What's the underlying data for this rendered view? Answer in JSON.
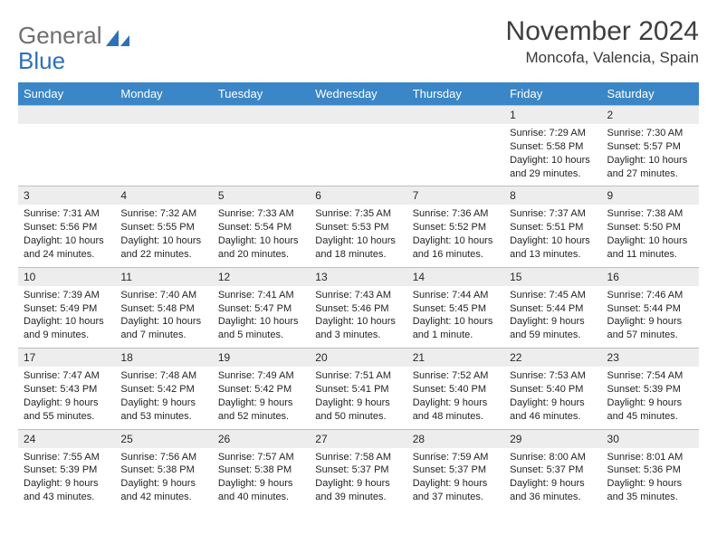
{
  "logo": {
    "text1": "General",
    "text2": "Blue"
  },
  "title": "November 2024",
  "location": "Moncofa, Valencia, Spain",
  "colors": {
    "header_bg": "#3b86c6",
    "header_text": "#ffffff",
    "daynum_bg": "#ededed",
    "border": "#bfbfbf",
    "logo_gray": "#6f6f6f",
    "logo_blue": "#2d72b6"
  },
  "columns": [
    "Sunday",
    "Monday",
    "Tuesday",
    "Wednesday",
    "Thursday",
    "Friday",
    "Saturday"
  ],
  "weeks": [
    [
      {
        "n": "",
        "sr": "",
        "ss": "",
        "dl": ""
      },
      {
        "n": "",
        "sr": "",
        "ss": "",
        "dl": ""
      },
      {
        "n": "",
        "sr": "",
        "ss": "",
        "dl": ""
      },
      {
        "n": "",
        "sr": "",
        "ss": "",
        "dl": ""
      },
      {
        "n": "",
        "sr": "",
        "ss": "",
        "dl": ""
      },
      {
        "n": "1",
        "sr": "Sunrise: 7:29 AM",
        "ss": "Sunset: 5:58 PM",
        "dl": "Daylight: 10 hours and 29 minutes."
      },
      {
        "n": "2",
        "sr": "Sunrise: 7:30 AM",
        "ss": "Sunset: 5:57 PM",
        "dl": "Daylight: 10 hours and 27 minutes."
      }
    ],
    [
      {
        "n": "3",
        "sr": "Sunrise: 7:31 AM",
        "ss": "Sunset: 5:56 PM",
        "dl": "Daylight: 10 hours and 24 minutes."
      },
      {
        "n": "4",
        "sr": "Sunrise: 7:32 AM",
        "ss": "Sunset: 5:55 PM",
        "dl": "Daylight: 10 hours and 22 minutes."
      },
      {
        "n": "5",
        "sr": "Sunrise: 7:33 AM",
        "ss": "Sunset: 5:54 PM",
        "dl": "Daylight: 10 hours and 20 minutes."
      },
      {
        "n": "6",
        "sr": "Sunrise: 7:35 AM",
        "ss": "Sunset: 5:53 PM",
        "dl": "Daylight: 10 hours and 18 minutes."
      },
      {
        "n": "7",
        "sr": "Sunrise: 7:36 AM",
        "ss": "Sunset: 5:52 PM",
        "dl": "Daylight: 10 hours and 16 minutes."
      },
      {
        "n": "8",
        "sr": "Sunrise: 7:37 AM",
        "ss": "Sunset: 5:51 PM",
        "dl": "Daylight: 10 hours and 13 minutes."
      },
      {
        "n": "9",
        "sr": "Sunrise: 7:38 AM",
        "ss": "Sunset: 5:50 PM",
        "dl": "Daylight: 10 hours and 11 minutes."
      }
    ],
    [
      {
        "n": "10",
        "sr": "Sunrise: 7:39 AM",
        "ss": "Sunset: 5:49 PM",
        "dl": "Daylight: 10 hours and 9 minutes."
      },
      {
        "n": "11",
        "sr": "Sunrise: 7:40 AM",
        "ss": "Sunset: 5:48 PM",
        "dl": "Daylight: 10 hours and 7 minutes."
      },
      {
        "n": "12",
        "sr": "Sunrise: 7:41 AM",
        "ss": "Sunset: 5:47 PM",
        "dl": "Daylight: 10 hours and 5 minutes."
      },
      {
        "n": "13",
        "sr": "Sunrise: 7:43 AM",
        "ss": "Sunset: 5:46 PM",
        "dl": "Daylight: 10 hours and 3 minutes."
      },
      {
        "n": "14",
        "sr": "Sunrise: 7:44 AM",
        "ss": "Sunset: 5:45 PM",
        "dl": "Daylight: 10 hours and 1 minute."
      },
      {
        "n": "15",
        "sr": "Sunrise: 7:45 AM",
        "ss": "Sunset: 5:44 PM",
        "dl": "Daylight: 9 hours and 59 minutes."
      },
      {
        "n": "16",
        "sr": "Sunrise: 7:46 AM",
        "ss": "Sunset: 5:44 PM",
        "dl": "Daylight: 9 hours and 57 minutes."
      }
    ],
    [
      {
        "n": "17",
        "sr": "Sunrise: 7:47 AM",
        "ss": "Sunset: 5:43 PM",
        "dl": "Daylight: 9 hours and 55 minutes."
      },
      {
        "n": "18",
        "sr": "Sunrise: 7:48 AM",
        "ss": "Sunset: 5:42 PM",
        "dl": "Daylight: 9 hours and 53 minutes."
      },
      {
        "n": "19",
        "sr": "Sunrise: 7:49 AM",
        "ss": "Sunset: 5:42 PM",
        "dl": "Daylight: 9 hours and 52 minutes."
      },
      {
        "n": "20",
        "sr": "Sunrise: 7:51 AM",
        "ss": "Sunset: 5:41 PM",
        "dl": "Daylight: 9 hours and 50 minutes."
      },
      {
        "n": "21",
        "sr": "Sunrise: 7:52 AM",
        "ss": "Sunset: 5:40 PM",
        "dl": "Daylight: 9 hours and 48 minutes."
      },
      {
        "n": "22",
        "sr": "Sunrise: 7:53 AM",
        "ss": "Sunset: 5:40 PM",
        "dl": "Daylight: 9 hours and 46 minutes."
      },
      {
        "n": "23",
        "sr": "Sunrise: 7:54 AM",
        "ss": "Sunset: 5:39 PM",
        "dl": "Daylight: 9 hours and 45 minutes."
      }
    ],
    [
      {
        "n": "24",
        "sr": "Sunrise: 7:55 AM",
        "ss": "Sunset: 5:39 PM",
        "dl": "Daylight: 9 hours and 43 minutes."
      },
      {
        "n": "25",
        "sr": "Sunrise: 7:56 AM",
        "ss": "Sunset: 5:38 PM",
        "dl": "Daylight: 9 hours and 42 minutes."
      },
      {
        "n": "26",
        "sr": "Sunrise: 7:57 AM",
        "ss": "Sunset: 5:38 PM",
        "dl": "Daylight: 9 hours and 40 minutes."
      },
      {
        "n": "27",
        "sr": "Sunrise: 7:58 AM",
        "ss": "Sunset: 5:37 PM",
        "dl": "Daylight: 9 hours and 39 minutes."
      },
      {
        "n": "28",
        "sr": "Sunrise: 7:59 AM",
        "ss": "Sunset: 5:37 PM",
        "dl": "Daylight: 9 hours and 37 minutes."
      },
      {
        "n": "29",
        "sr": "Sunrise: 8:00 AM",
        "ss": "Sunset: 5:37 PM",
        "dl": "Daylight: 9 hours and 36 minutes."
      },
      {
        "n": "30",
        "sr": "Sunrise: 8:01 AM",
        "ss": "Sunset: 5:36 PM",
        "dl": "Daylight: 9 hours and 35 minutes."
      }
    ]
  ]
}
